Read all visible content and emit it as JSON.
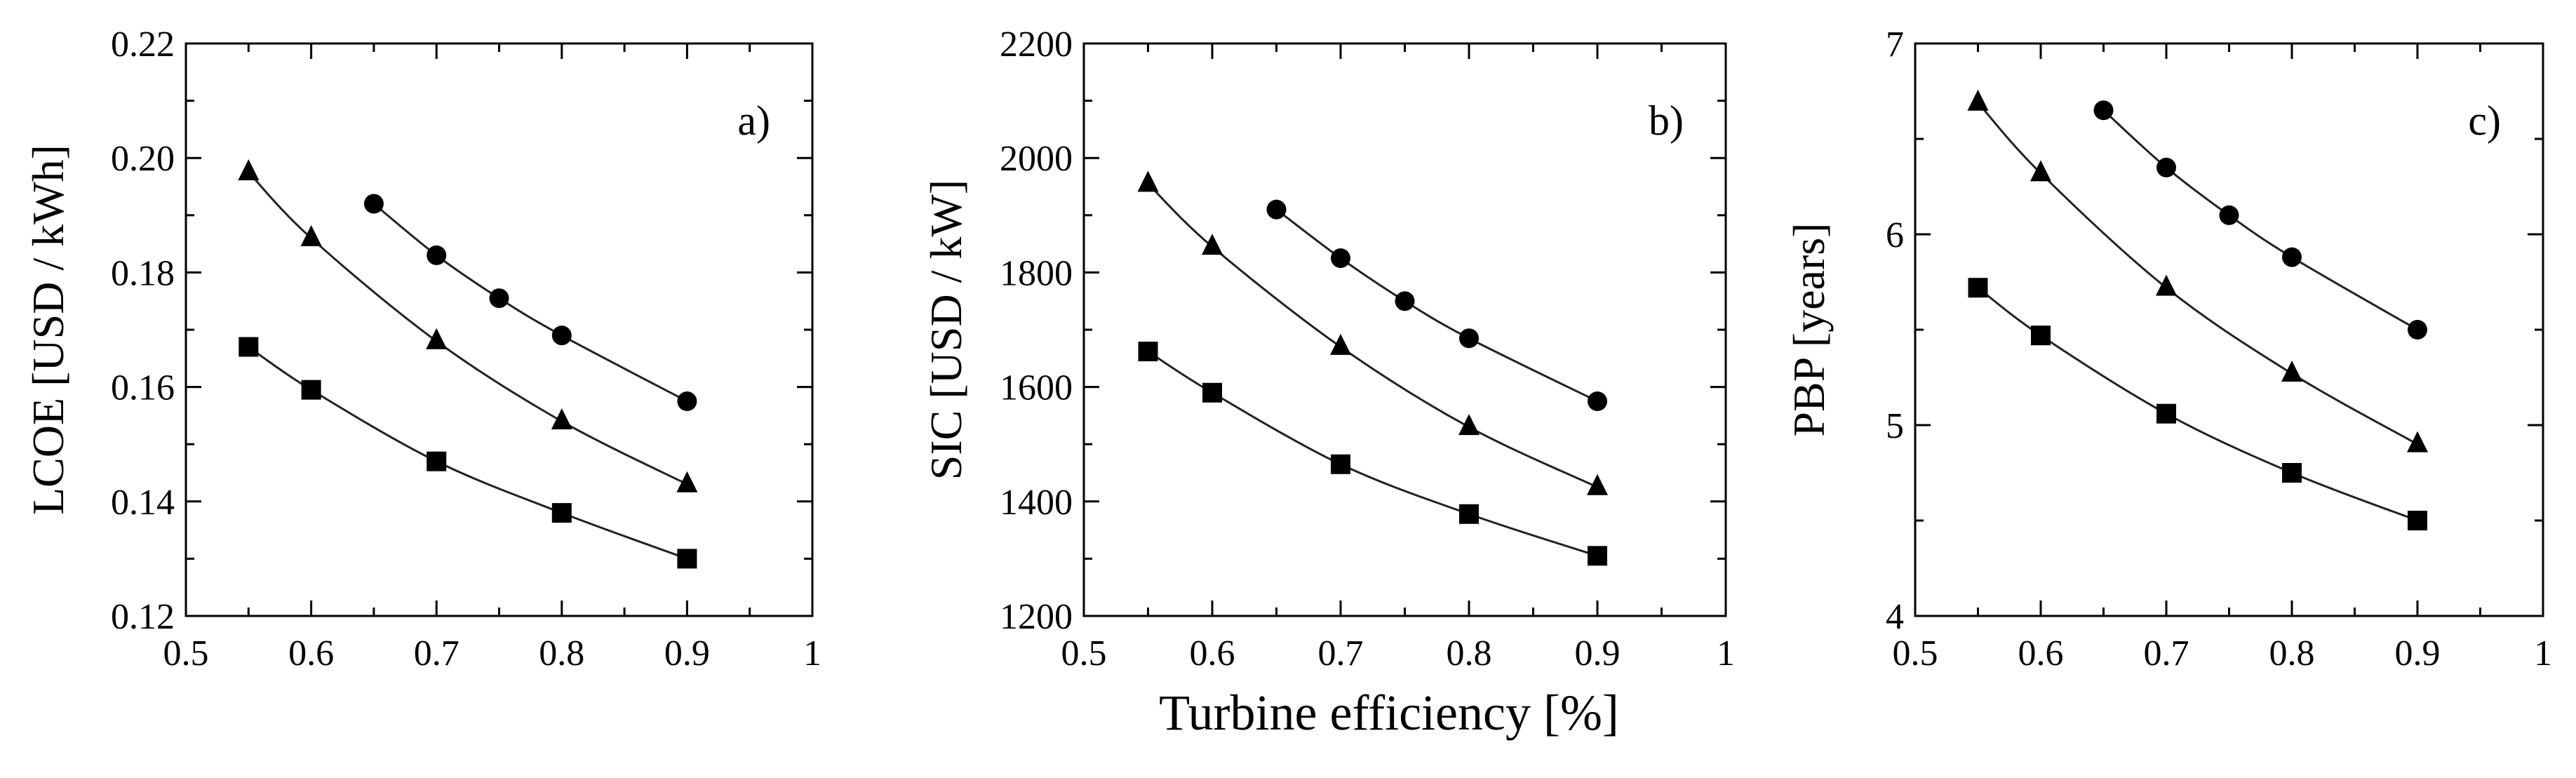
{
  "figure": {
    "shared_xlabel": "Turbine efficiency [%]"
  },
  "chart_data": [
    {
      "type": "line",
      "panel_label": "a)",
      "title": "",
      "xlabel": "",
      "ylabel": "LCOE [USD / kWh]",
      "xlim": [
        0.5,
        1.0
      ],
      "ylim": [
        0.12,
        0.22
      ],
      "xticks": [
        0.5,
        0.6,
        0.7,
        0.8,
        0.9,
        1.0
      ],
      "xtick_labels": [
        "0.5",
        "0.6",
        "0.7",
        "0.8",
        "0.9",
        "1"
      ],
      "yticks": [
        0.12,
        0.14,
        0.16,
        0.18,
        0.2,
        0.22
      ],
      "ytick_labels": [
        "0.12",
        "0.14",
        "0.16",
        "0.18",
        "0.20",
        "0.22"
      ],
      "grid": false,
      "series": [
        {
          "name": "circle",
          "marker": "circle",
          "x": [
            0.65,
            0.7,
            0.75,
            0.8,
            0.9
          ],
          "y": [
            0.192,
            0.183,
            0.1755,
            0.169,
            0.1575
          ]
        },
        {
          "name": "triangle",
          "marker": "triangle",
          "x": [
            0.55,
            0.6,
            0.7,
            0.8,
            0.9
          ],
          "y": [
            0.1975,
            0.186,
            0.168,
            0.154,
            0.143
          ]
        },
        {
          "name": "square",
          "marker": "square",
          "x": [
            0.55,
            0.6,
            0.7,
            0.8,
            0.9
          ],
          "y": [
            0.167,
            0.1595,
            0.147,
            0.138,
            0.13
          ]
        }
      ]
    },
    {
      "type": "line",
      "panel_label": "b)",
      "title": "",
      "xlabel": "Turbine efficiency [%]",
      "ylabel": "SIC [USD / kW]",
      "xlim": [
        0.5,
        1.0
      ],
      "ylim": [
        1200,
        2200
      ],
      "xticks": [
        0.5,
        0.6,
        0.7,
        0.8,
        0.9,
        1.0
      ],
      "xtick_labels": [
        "0.5",
        "0.6",
        "0.7",
        "0.8",
        "0.9",
        "1"
      ],
      "yticks": [
        1200,
        1400,
        1600,
        1800,
        2000,
        2200
      ],
      "ytick_labels": [
        "1200",
        "1400",
        "1600",
        "1800",
        "2000",
        "2200"
      ],
      "grid": false,
      "series": [
        {
          "name": "circle",
          "marker": "circle",
          "x": [
            0.65,
            0.7,
            0.75,
            0.8,
            0.9
          ],
          "y": [
            1910,
            1825,
            1750,
            1685,
            1575
          ]
        },
        {
          "name": "triangle",
          "marker": "triangle",
          "x": [
            0.55,
            0.6,
            0.7,
            0.8,
            0.9
          ],
          "y": [
            1955,
            1845,
            1670,
            1530,
            1425
          ]
        },
        {
          "name": "square",
          "marker": "square",
          "x": [
            0.55,
            0.6,
            0.7,
            0.8,
            0.9
          ],
          "y": [
            1662,
            1590,
            1465,
            1378,
            1305
          ]
        }
      ]
    },
    {
      "type": "line",
      "panel_label": "c)",
      "title": "",
      "xlabel": "",
      "ylabel": "PBP [years]",
      "xlim": [
        0.5,
        1.0
      ],
      "ylim": [
        4,
        7
      ],
      "xticks": [
        0.5,
        0.6,
        0.7,
        0.8,
        0.9,
        1.0
      ],
      "xtick_labels": [
        "0.5",
        "0.6",
        "0.7",
        "0.8",
        "0.9",
        "1"
      ],
      "yticks": [
        4,
        5,
        6,
        7
      ],
      "ytick_labels": [
        "4",
        "5",
        "6",
        "7"
      ],
      "grid": false,
      "series": [
        {
          "name": "circle",
          "marker": "circle",
          "x": [
            0.65,
            0.7,
            0.75,
            0.8,
            0.9
          ],
          "y": [
            6.65,
            6.35,
            6.1,
            5.88,
            5.5
          ]
        },
        {
          "name": "triangle",
          "marker": "triangle",
          "x": [
            0.55,
            0.6,
            0.7,
            0.8,
            0.9
          ],
          "y": [
            6.69,
            6.32,
            5.72,
            5.27,
            4.9
          ]
        },
        {
          "name": "square",
          "marker": "square",
          "x": [
            0.55,
            0.6,
            0.7,
            0.8,
            0.9
          ],
          "y": [
            5.72,
            5.47,
            5.06,
            4.75,
            4.5
          ]
        }
      ]
    }
  ]
}
